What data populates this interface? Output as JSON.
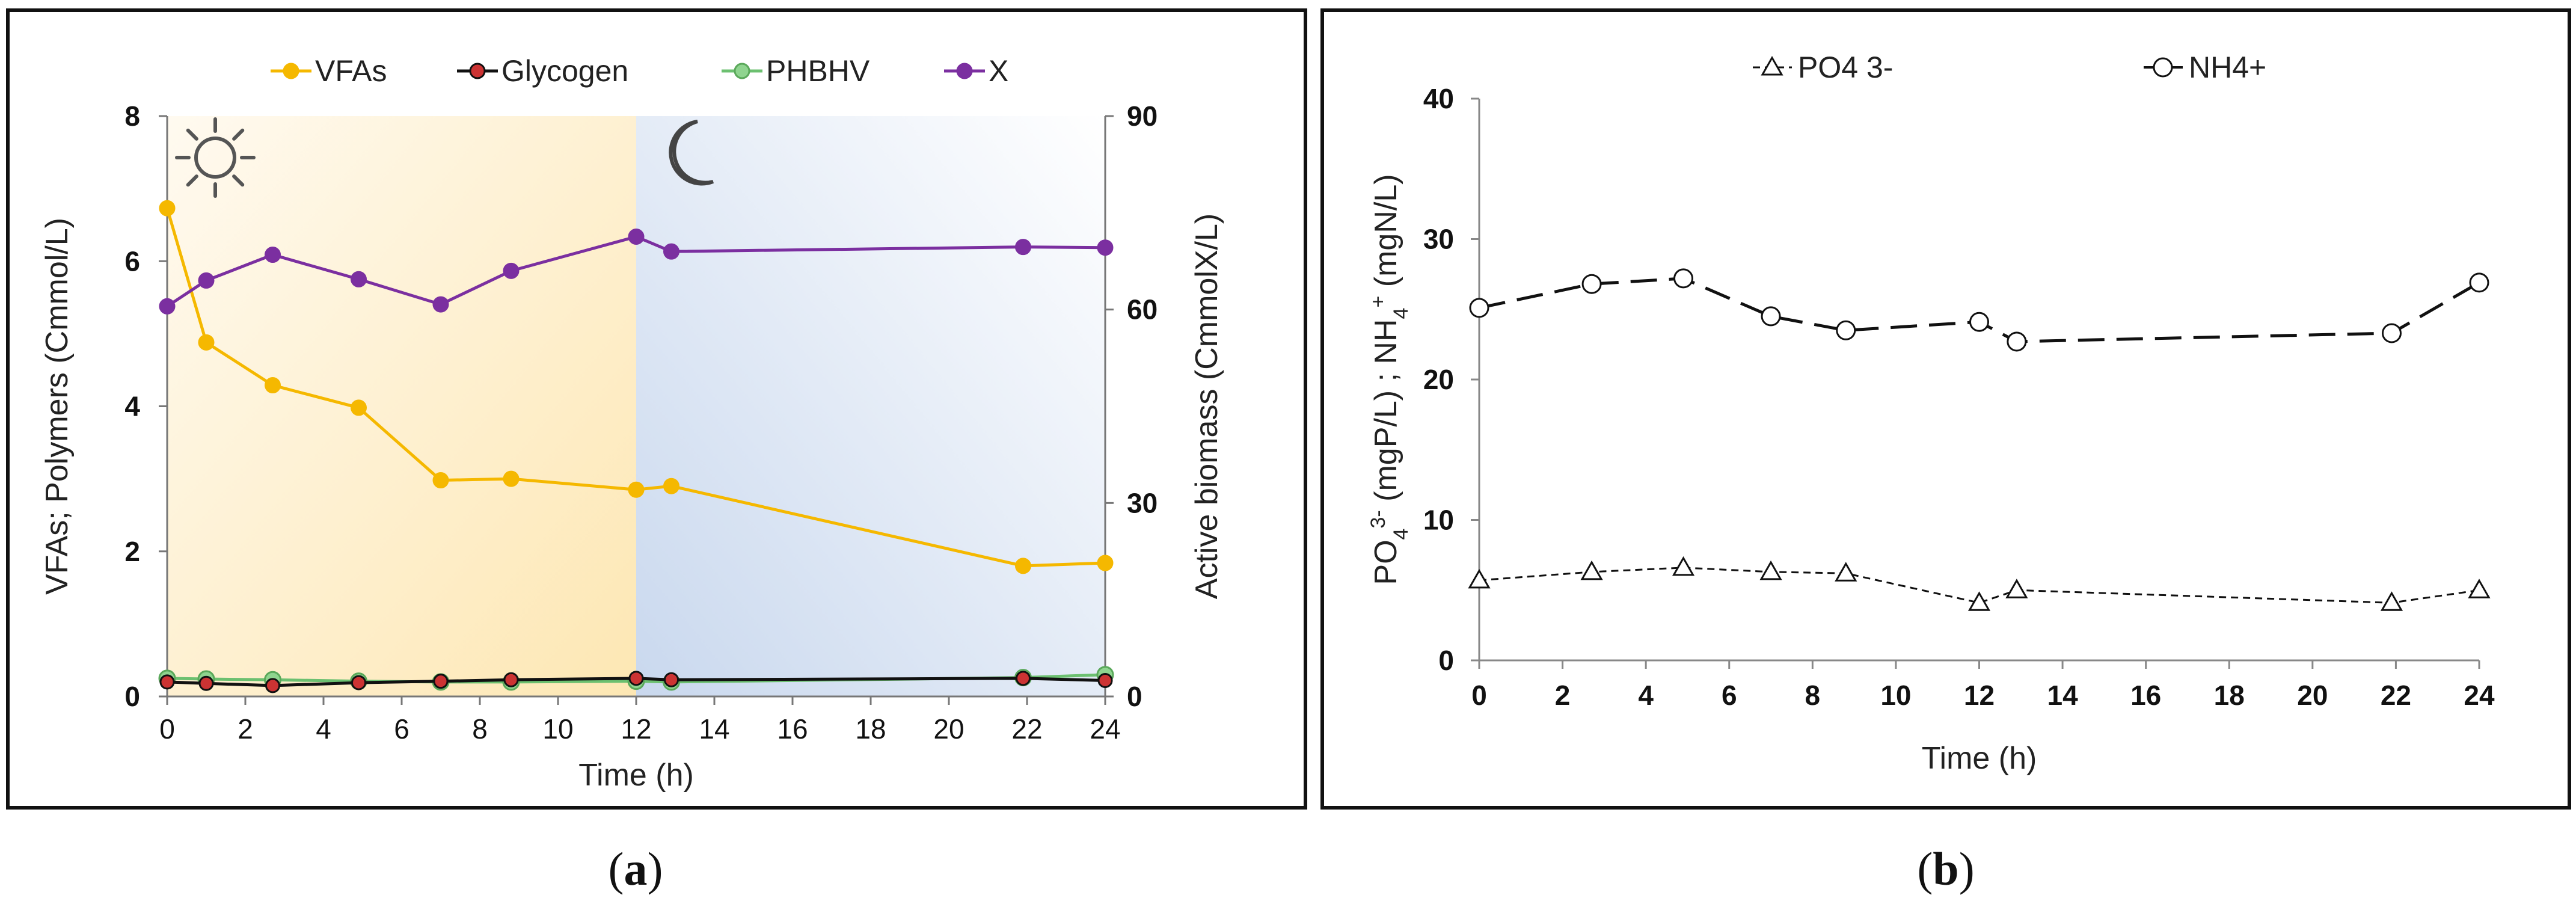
{
  "chart_data": [
    {
      "type": "line",
      "panel_label": "a",
      "xlabel": "Time (h)",
      "ylabel": "VFAs; Polymers (Cmmol/L)",
      "y2label": "Active biomass (CmmolX/L)",
      "xlim": [
        0,
        24
      ],
      "ylim": [
        0,
        8
      ],
      "y2lim": [
        0,
        90
      ],
      "xticks": [
        "0",
        "2",
        "4",
        "6",
        "8",
        "10",
        "12",
        "14",
        "16",
        "18",
        "20",
        "22",
        "24"
      ],
      "yticks": [
        "0",
        "2",
        "4",
        "6",
        "8"
      ],
      "y2ticks": [
        "0",
        "30",
        "60",
        "90"
      ],
      "legend": "top",
      "grid": false,
      "background": {
        "day_end_x": 12,
        "day_color": "#fde7b3",
        "night_color": "#c9d8ee"
      },
      "series": [
        {
          "name": "VFAs",
          "axis": "left",
          "color": "#f5b800",
          "x": [
            0,
            1,
            2.7,
            4.9,
            7,
            8.8,
            12,
            12.9,
            21.9,
            24
          ],
          "y": [
            6.73,
            4.88,
            4.29,
            3.98,
            2.98,
            3.0,
            2.85,
            2.9,
            1.8,
            1.84
          ]
        },
        {
          "name": "Glycogen",
          "axis": "left",
          "color": "#111111",
          "x": [
            0,
            1,
            2.7,
            4.9,
            7,
            8.8,
            12,
            12.9,
            21.9,
            24
          ],
          "y": [
            0.2,
            0.18,
            0.15,
            0.19,
            0.21,
            0.23,
            0.25,
            0.23,
            0.25,
            0.22
          ]
        },
        {
          "name": "PHBHV",
          "axis": "left",
          "color": "#6cc070",
          "x": [
            0,
            1,
            2.7,
            4.9,
            7,
            8.8,
            12,
            12.9,
            21.9,
            24
          ],
          "y": [
            0.25,
            0.24,
            0.23,
            0.21,
            0.2,
            0.2,
            0.21,
            0.2,
            0.26,
            0.3
          ]
        },
        {
          "name": "X",
          "axis": "right",
          "color": "#7b2fa0",
          "x": [
            0,
            1,
            2.7,
            4.9,
            7,
            8.8,
            12,
            12.9,
            21.9,
            24
          ],
          "y": [
            60.5,
            64.5,
            68.5,
            64.7,
            60.8,
            66.0,
            71.3,
            69.0,
            69.7,
            69.6
          ]
        }
      ]
    },
    {
      "type": "line",
      "panel_label": "b",
      "xlabel": "Time (h)",
      "ylabel": "PO43- (mgP/L) ; NH4+ (mgN/L)",
      "xlim": [
        0,
        24
      ],
      "ylim": [
        0,
        40
      ],
      "xticks": [
        "0",
        "2",
        "4",
        "6",
        "8",
        "10",
        "12",
        "14",
        "16",
        "18",
        "20",
        "22",
        "24"
      ],
      "yticks": [
        "0",
        "10",
        "20",
        "30",
        "40"
      ],
      "legend": "top",
      "grid": false,
      "series": [
        {
          "name": "PO4 3-",
          "marker": "triangle",
          "dash": "short",
          "color": "#111111",
          "x": [
            0,
            2.7,
            4.9,
            7,
            8.8,
            12,
            12.9,
            21.9,
            24
          ],
          "y": [
            5.7,
            6.3,
            6.6,
            6.3,
            6.2,
            4.1,
            5.0,
            4.1,
            5.0
          ]
        },
        {
          "name": "NH4+",
          "marker": "circle",
          "dash": "long",
          "color": "#111111",
          "x": [
            0,
            2.7,
            4.9,
            7,
            8.8,
            12,
            12.9,
            21.9,
            24
          ],
          "y": [
            25.1,
            26.8,
            27.2,
            24.5,
            23.5,
            24.1,
            22.7,
            23.3,
            26.9
          ]
        }
      ]
    }
  ]
}
